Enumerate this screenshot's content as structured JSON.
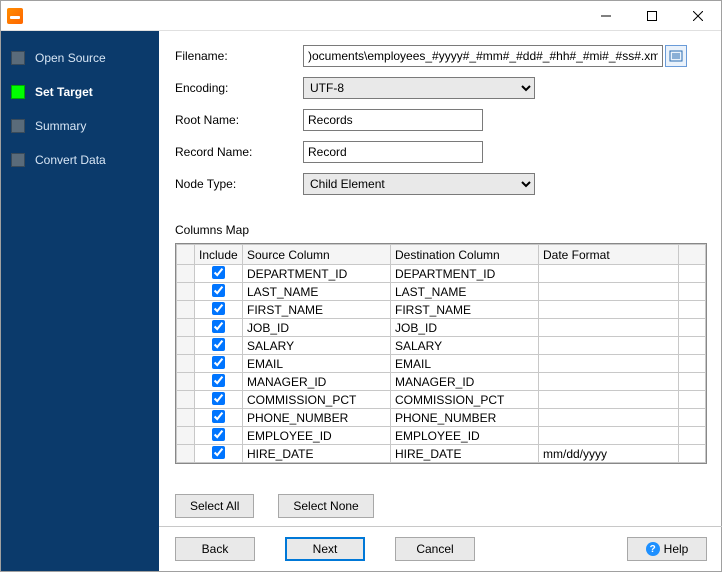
{
  "window": {
    "title": ""
  },
  "sidebar": {
    "items": [
      {
        "label": "Open Source",
        "active": false
      },
      {
        "label": "Set Target",
        "active": true
      },
      {
        "label": "Summary",
        "active": false
      },
      {
        "label": "Convert Data",
        "active": false
      }
    ],
    "bg_color": "#0b3a6b",
    "text_color": "#d8e6f5",
    "active_box_color": "#00ff00"
  },
  "form": {
    "filename_label": "Filename:",
    "filename_value": ")ocuments\\employees_#yyyy#_#mm#_#dd#_#hh#_#mi#_#ss#.xml",
    "encoding_label": "Encoding:",
    "encoding_value": "UTF-8",
    "rootname_label": "Root Name:",
    "rootname_value": "Records",
    "recordname_label": "Record Name:",
    "recordname_value": "Record",
    "nodetype_label": "Node Type:",
    "nodetype_value": "Child Element"
  },
  "columns_map": {
    "heading": "Columns Map",
    "headers": {
      "include": "Include",
      "source": "Source Column",
      "dest": "Destination Column",
      "date": "Date Format"
    },
    "col_widths": {
      "rowhead": 18,
      "include": 48,
      "source": 148,
      "dest": 148,
      "date": 140
    },
    "rows": [
      {
        "include": true,
        "source": "DEPARTMENT_ID",
        "dest": "DEPARTMENT_ID",
        "date": ""
      },
      {
        "include": true,
        "source": "LAST_NAME",
        "dest": "LAST_NAME",
        "date": ""
      },
      {
        "include": true,
        "source": "FIRST_NAME",
        "dest": "FIRST_NAME",
        "date": ""
      },
      {
        "include": true,
        "source": "JOB_ID",
        "dest": "JOB_ID",
        "date": ""
      },
      {
        "include": true,
        "source": "SALARY",
        "dest": "SALARY",
        "date": ""
      },
      {
        "include": true,
        "source": "EMAIL",
        "dest": "EMAIL",
        "date": ""
      },
      {
        "include": true,
        "source": "MANAGER_ID",
        "dest": "MANAGER_ID",
        "date": ""
      },
      {
        "include": true,
        "source": "COMMISSION_PCT",
        "dest": "COMMISSION_PCT",
        "date": ""
      },
      {
        "include": true,
        "source": "PHONE_NUMBER",
        "dest": "PHONE_NUMBER",
        "date": ""
      },
      {
        "include": true,
        "source": "EMPLOYEE_ID",
        "dest": "EMPLOYEE_ID",
        "date": ""
      },
      {
        "include": true,
        "source": "HIRE_DATE",
        "dest": "HIRE_DATE",
        "date": "mm/dd/yyyy"
      }
    ]
  },
  "buttons": {
    "select_all": "Select All",
    "select_none": "Select None",
    "back": "Back",
    "next": "Next",
    "cancel": "Cancel",
    "help": "Help"
  },
  "colors": {
    "window_border": "#a0a0a0",
    "input_border": "#7a7a7a",
    "primary_border": "#0078d7",
    "grid_border": "#c8c8c8",
    "header_bg": "#f5f5f5",
    "button_bg": "#e9e9e9"
  }
}
